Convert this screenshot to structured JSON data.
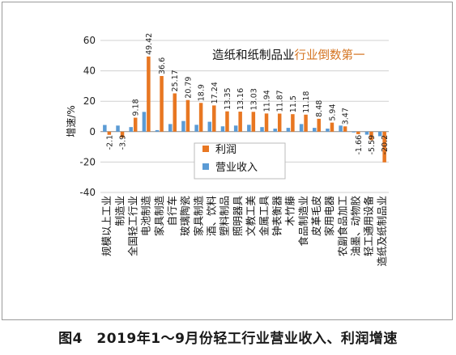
{
  "caption": "图4　2019年1～9月份轻工行业营业收入、利润增速",
  "chart_data": {
    "type": "bar",
    "ylabel": "增速/%",
    "ylim": [
      -40,
      60
    ],
    "yticks": [
      60,
      40,
      20,
      0,
      -20,
      -40
    ],
    "categories": [
      "规模以上工业",
      "制造业",
      "全国轻工行业",
      "电池制造",
      "家具制造",
      "自行车",
      "玻璃陶瓷",
      "家具制造",
      "酒、饮料",
      "塑料制品",
      "照明器具",
      "文教工美",
      "金属工具",
      "钟表衡器",
      "木竹藤",
      "食品制造业",
      "皮革毛皮",
      "家用电器",
      "农副食品加工",
      "油墨、动物胶",
      "轻工通用设备",
      "造纸及纸制品业"
    ],
    "series": [
      {
        "name": "利润",
        "color": "#e87722",
        "values": [
          -2.1,
          -3.9,
          9.18,
          49.42,
          36.6,
          25.17,
          20.79,
          18.9,
          17.24,
          13.35,
          13.16,
          13.03,
          11.94,
          11.87,
          11.5,
          11.18,
          8.48,
          5.94,
          3.47,
          -1.66,
          -5.59,
          -20.2
        ]
      },
      {
        "name": "营业收入",
        "color": "#5b9bd5",
        "values": [
          4.4,
          4.0,
          3.0,
          13.0,
          1.0,
          5.0,
          7.0,
          4.5,
          6.5,
          3.5,
          4.0,
          4.5,
          3.0,
          2.0,
          2.5,
          5.0,
          2.5,
          2.0,
          4.0,
          -0.5,
          -2.0,
          -3.0
        ]
      }
    ],
    "data_labels": [
      "-2.1",
      "-3.9",
      "9.18",
      "49.42",
      "36.6",
      "25.17",
      "20.79",
      "18.9",
      "17.24",
      "13.35",
      "13.16",
      "13.03",
      "11.94",
      "11.87",
      "11.5",
      "11.18",
      "8.48",
      "5.94",
      "3.47",
      "-1.66",
      "-5.59",
      "-20.2"
    ],
    "annotation": {
      "part1": "造纸和纸制品业",
      "part2": "行业倒数第一"
    },
    "legend": {
      "position": "center",
      "items": [
        "利润",
        "营业收入"
      ]
    }
  }
}
